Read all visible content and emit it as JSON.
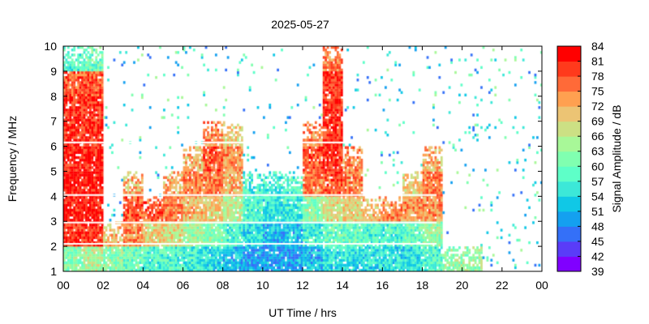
{
  "chart_data": {
    "type": "heatmap",
    "title": "2025-05-27",
    "xlabel": "UT Time / hrs",
    "ylabel": "Frequency / MHz",
    "colorbar_label": "Signal Amplitude / dB",
    "xlim": [
      0,
      24
    ],
    "ylim": [
      1,
      10
    ],
    "x_ticks": [
      "00",
      "02",
      "04",
      "06",
      "08",
      "10",
      "12",
      "14",
      "16",
      "18",
      "20",
      "22",
      "00"
    ],
    "y_ticks": [
      "1",
      "2",
      "3",
      "4",
      "5",
      "6",
      "7",
      "8",
      "9",
      "10"
    ],
    "colorbar_ticks": [
      "39",
      "42",
      "45",
      "48",
      "51",
      "54",
      "57",
      "60",
      "63",
      "66",
      "69",
      "72",
      "75",
      "78",
      "81",
      "84"
    ],
    "color_range": [
      39,
      84
    ],
    "colors": [
      "#8000ff",
      "#5a3cf8",
      "#3470f8",
      "#14a0f0",
      "#10c8e6",
      "#3ce8d8",
      "#5effc8",
      "#80ffb0",
      "#a8f898",
      "#cce084",
      "#ecc474",
      "#ffa050",
      "#ff6a38",
      "#ff3a1c",
      "#ff0000"
    ],
    "frequency_bins_mhz": [
      "1-2",
      "2-3",
      "3-4",
      "4-5",
      "5-6",
      "6-7",
      "7-8",
      "8-9",
      "9-10"
    ],
    "hours": [
      0,
      1,
      2,
      3,
      4,
      5,
      6,
      7,
      8,
      9,
      10,
      11,
      12,
      13,
      14,
      15,
      16,
      17,
      18,
      19,
      20,
      21,
      22,
      23
    ],
    "values_db": [
      [
        62,
        80,
        82,
        82,
        81,
        80,
        80,
        78,
        58
      ],
      [
        65,
        80,
        82,
        82,
        82,
        81,
        80,
        78,
        60
      ],
      [
        62,
        72,
        null,
        null,
        null,
        null,
        null,
        null,
        null
      ],
      [
        60,
        75,
        78,
        72,
        null,
        null,
        null,
        null,
        null
      ],
      [
        58,
        70,
        78,
        null,
        null,
        null,
        null,
        null,
        null
      ],
      [
        58,
        68,
        76,
        72,
        null,
        null,
        null,
        null,
        null
      ],
      [
        56,
        64,
        72,
        76,
        72,
        null,
        null,
        null,
        null
      ],
      [
        55,
        62,
        70,
        76,
        78,
        75,
        null,
        null,
        null
      ],
      [
        52,
        58,
        66,
        72,
        74,
        70,
        null,
        null,
        null
      ],
      [
        50,
        55,
        58,
        56,
        null,
        null,
        null,
        null,
        null
      ],
      [
        50,
        52,
        55,
        56,
        null,
        null,
        null,
        null,
        null
      ],
      [
        50,
        52,
        56,
        58,
        null,
        null,
        null,
        null,
        null
      ],
      [
        52,
        56,
        62,
        76,
        78,
        75,
        null,
        null,
        null
      ],
      [
        55,
        60,
        68,
        78,
        80,
        80,
        80,
        80,
        76
      ],
      [
        55,
        60,
        70,
        76,
        75,
        null,
        null,
        null,
        null
      ],
      [
        55,
        58,
        72,
        null,
        null,
        null,
        null,
        null,
        null
      ],
      [
        55,
        58,
        74,
        null,
        null,
        null,
        null,
        null,
        null
      ],
      [
        55,
        60,
        74,
        70,
        null,
        null,
        null,
        null,
        null
      ],
      [
        58,
        64,
        74,
        76,
        72,
        null,
        null,
        null,
        null
      ],
      [
        62,
        null,
        null,
        null,
        null,
        null,
        null,
        null,
        null
      ],
      [
        64,
        null,
        null,
        null,
        null,
        null,
        null,
        null,
        null
      ],
      [
        null,
        null,
        null,
        null,
        null,
        null,
        null,
        null,
        null
      ],
      [
        null,
        null,
        null,
        null,
        null,
        null,
        null,
        null,
        null
      ],
      [
        null,
        null,
        null,
        null,
        null,
        null,
        null,
        null,
        null
      ]
    ],
    "gap_lines_mhz": [
      2.1,
      2.95,
      4.05,
      6.15
    ],
    "grid": false
  }
}
